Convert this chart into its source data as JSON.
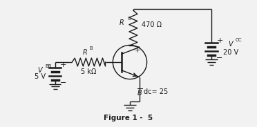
{
  "bg_color": "#f2f2f2",
  "fig_caption": "Figure 1 -  5",
  "vbb_label": "V",
  "vbb_sub": "BB",
  "vbb_val": "5 V",
  "vcc_label": "V",
  "vcc_sub": "CC",
  "vcc_val": "20 V",
  "rb_label": "R",
  "rb_sub": "B",
  "rb_val": "5 kΩ",
  "rc_label": "R",
  "rc_sub": "C",
  "rc_val": "470 Ω",
  "beta_label": "B",
  "beta_val": "dc= 25",
  "line_color": "#1a1a1a",
  "line_width": 1.0,
  "font_size": 7.0
}
